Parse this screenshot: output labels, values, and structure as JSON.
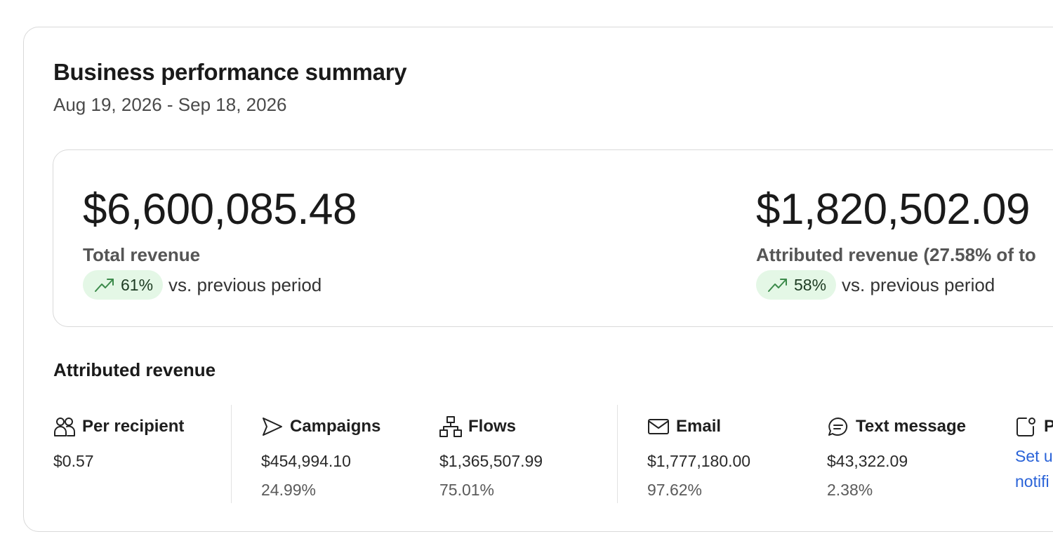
{
  "summary": {
    "title": "Business performance summary",
    "date_range": "Aug 19, 2026 - Sep 18, 2026"
  },
  "kpis": [
    {
      "value": "$6,600,085.48",
      "label": "Total revenue",
      "change": "61%",
      "change_icon": "trending-up-icon",
      "comparison": "vs. previous period"
    },
    {
      "value": "$1,820,502.09",
      "label": "Attributed revenue (27.58% of to",
      "change": "58%",
      "change_icon": "trending-up-icon",
      "comparison": "vs. previous period"
    }
  ],
  "attributed": {
    "title": "Attributed revenue",
    "metrics": [
      {
        "name": "Per recipient",
        "icon": "people-icon",
        "value": "$0.57"
      },
      {
        "name": "Campaigns",
        "icon": "send-icon",
        "value": "$454,994.10",
        "percent": "24.99%"
      },
      {
        "name": "Flows",
        "icon": "flow-icon",
        "value": "$1,365,507.99",
        "percent": "75.01%"
      },
      {
        "name": "Email",
        "icon": "mail-icon",
        "value": "$1,777,180.00",
        "percent": "97.62%"
      },
      {
        "name": "Text message",
        "icon": "chat-icon",
        "value": "$43,322.09",
        "percent": "2.38%"
      },
      {
        "name": "P",
        "icon": "push-notification-icon",
        "link_line1": "Set u",
        "link_line2": "notifi"
      }
    ]
  },
  "colors": {
    "accent_link": "#2a63d8",
    "positive_pill": "#e4f7e6",
    "positive_icon": "#3b8a4a"
  }
}
